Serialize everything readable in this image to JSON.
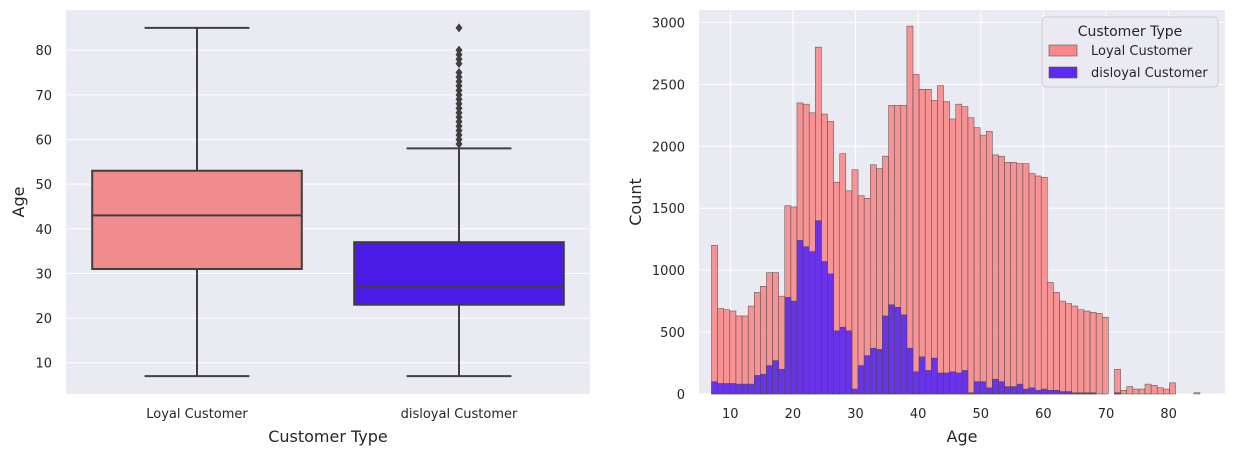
{
  "chart_data": [
    {
      "type": "box",
      "xlabel": "Customer Type",
      "ylabel": "Age",
      "ylim": [
        3,
        89
      ],
      "yticks": [
        10,
        20,
        30,
        40,
        50,
        60,
        70,
        80
      ],
      "grid": true,
      "categories": [
        "Loyal Customer",
        "disloyal Customer"
      ],
      "boxes": [
        {
          "category": "Loyal Customer",
          "whisker_low": 7,
          "q1": 31,
          "median": 43,
          "q3": 53,
          "whisker_high": 85,
          "color": "#F08C8E",
          "outliers": []
        },
        {
          "category": "disloyal Customer",
          "whisker_low": 7,
          "q1": 23,
          "median": 27,
          "q3": 37,
          "whisker_high": 58,
          "color": "#4B1BE6",
          "outliers": [
            59,
            60,
            61,
            62,
            63,
            64,
            65,
            66,
            67,
            68,
            69,
            70,
            71,
            72,
            73,
            74,
            75,
            77,
            78,
            79,
            80,
            85
          ]
        }
      ]
    },
    {
      "type": "histogram",
      "xlabel": "Age",
      "ylabel": "Count",
      "xlim": [
        5,
        89
      ],
      "ylim": [
        0,
        3100
      ],
      "xticks": [
        10,
        20,
        30,
        40,
        50,
        60,
        70,
        80
      ],
      "yticks": [
        0,
        500,
        1000,
        1500,
        2000,
        2500,
        3000
      ],
      "grid": true,
      "legend": {
        "title": "Customer Type",
        "placement": "top-right"
      },
      "bin_start": 7,
      "bin_width": 0.975,
      "series": [
        {
          "name": "Loyal Customer",
          "color": "#F7898B",
          "values": [
            1200,
            690,
            680,
            670,
            630,
            630,
            710,
            820,
            870,
            980,
            980,
            790,
            1520,
            1510,
            2350,
            2340,
            2270,
            2800,
            2260,
            2200,
            1710,
            1940,
            1640,
            1810,
            1600,
            1580,
            1850,
            1820,
            1920,
            2330,
            2330,
            2330,
            2970,
            2580,
            2460,
            2460,
            2370,
            2490,
            2360,
            2220,
            2340,
            2320,
            2230,
            2150,
            2090,
            2120,
            1930,
            1920,
            1870,
            1870,
            1860,
            1860,
            1780,
            1760,
            1750,
            900,
            820,
            750,
            730,
            710,
            680,
            670,
            660,
            650,
            620,
            0,
            200,
            30,
            60,
            40,
            40,
            80,
            70,
            50,
            40,
            90,
            0,
            0,
            0,
            10,
            0
          ]
        },
        {
          "name": "disloyal Customer",
          "color": "#5C2AF0",
          "values": [
            100,
            85,
            85,
            85,
            80,
            80,
            80,
            150,
            160,
            230,
            270,
            200,
            780,
            750,
            1240,
            1190,
            1150,
            1400,
            1070,
            970,
            510,
            540,
            510,
            40,
            230,
            310,
            370,
            360,
            630,
            720,
            700,
            640,
            370,
            180,
            300,
            190,
            290,
            170,
            170,
            180,
            170,
            190,
            10,
            100,
            100,
            50,
            120,
            100,
            60,
            60,
            80,
            40,
            50,
            30,
            40,
            30,
            30,
            20,
            20,
            10,
            10,
            10,
            10,
            0,
            0,
            0,
            10,
            0,
            0,
            0,
            0,
            0,
            0,
            0,
            0,
            0,
            0,
            0,
            0,
            0,
            0
          ]
        }
      ]
    }
  ]
}
